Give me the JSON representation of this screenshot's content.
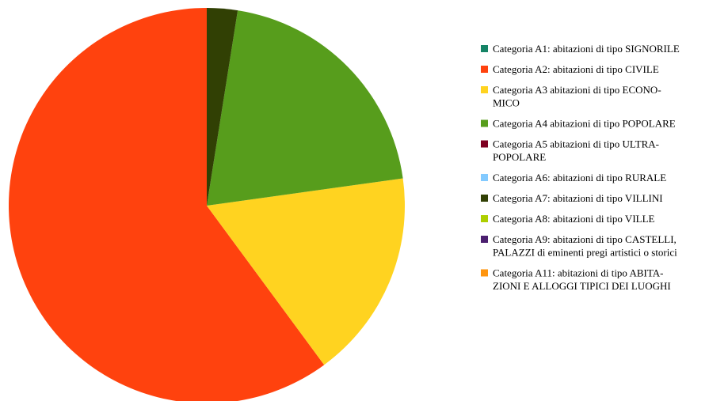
{
  "chart_data": {
    "type": "pie",
    "categories": [
      "Categoria A1: abitazioni di tipo SIGNORILE",
      "Categoria A2: abitazioni di tipo CIVILE",
      "Categoria A3  abitazioni di tipo ECONO-\nMICO",
      "Categoria A4  abitazioni di tipo POPOLARE",
      "Categoria A5  abitazioni di tipo ULTRA-\nPOPOLARE",
      "Categoria A6: abitazioni di tipo RURALE",
      "Categoria A7: abitazioni di tipo VILLINI",
      "Categoria A8: abitazioni di tipo VILLE",
      "Categoria A9: abitazioni di tipo CASTELLI,\nPALAZZI di eminenti pregi artistici o storici",
      "Categoria A11: abitazioni di tipo ABITA-\nZIONI E ALLOGGI TIPICI DEI LUOGHI"
    ],
    "values": [
      0,
      60.1,
      17.1,
      20.3,
      0,
      0,
      2.5,
      0,
      0,
      0
    ],
    "colors": [
      "#158466",
      "#ff420e",
      "#ffd320",
      "#579d1c",
      "#7e0021",
      "#83caff",
      "#314004",
      "#aecf00",
      "#4b1f6f",
      "#ff950e"
    ],
    "legend": "right"
  }
}
